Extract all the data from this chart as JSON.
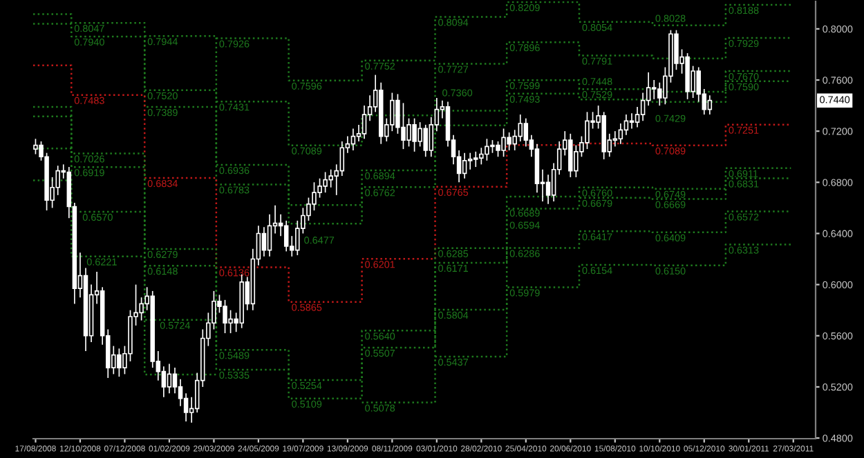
{
  "chart_data": {
    "type": "candlestick",
    "color": "#ffffff",
    "x": [
      "2008-08-17",
      "2008-08-24",
      "2008-08-31",
      "2008-09-07",
      "2008-09-14",
      "2008-09-21",
      "2008-09-28",
      "2008-10-05",
      "2008-10-12",
      "2008-10-19",
      "2008-10-26",
      "2008-11-02",
      "2008-11-09",
      "2008-11-16",
      "2008-11-23",
      "2008-11-30",
      "2008-12-07",
      "2008-12-14",
      "2008-12-21",
      "2008-12-28",
      "2009-01-04",
      "2009-01-11",
      "2009-01-18",
      "2009-01-25",
      "2009-02-01",
      "2009-02-08",
      "2009-02-15",
      "2009-02-22",
      "2009-03-01",
      "2009-03-08",
      "2009-03-15",
      "2009-03-22",
      "2009-03-29",
      "2009-04-05",
      "2009-04-12",
      "2009-04-19",
      "2009-04-26",
      "2009-05-03",
      "2009-05-10",
      "2009-05-17",
      "2009-05-24",
      "2009-05-31",
      "2009-06-07",
      "2009-06-14",
      "2009-06-21",
      "2009-06-28",
      "2009-07-05",
      "2009-07-12",
      "2009-07-19",
      "2009-07-26",
      "2009-08-02",
      "2009-08-09",
      "2009-08-16",
      "2009-08-23",
      "2009-08-30",
      "2009-09-06",
      "2009-09-13",
      "2009-09-20",
      "2009-09-27",
      "2009-10-04",
      "2009-10-11",
      "2009-10-18",
      "2009-10-25",
      "2009-11-01",
      "2009-11-08",
      "2009-11-15",
      "2009-11-22",
      "2009-11-29",
      "2009-12-06",
      "2009-12-13",
      "2009-12-20",
      "2009-12-27",
      "2010-01-03",
      "2010-01-10",
      "2010-01-17",
      "2010-01-24",
      "2010-01-31",
      "2010-02-07",
      "2010-02-14",
      "2010-02-21",
      "2010-02-28",
      "2010-03-07",
      "2010-03-14",
      "2010-03-21",
      "2010-03-28",
      "2010-04-04",
      "2010-04-11",
      "2010-04-18",
      "2010-04-25",
      "2010-05-02",
      "2010-05-09",
      "2010-05-16",
      "2010-05-23",
      "2010-05-30",
      "2010-06-06",
      "2010-06-13",
      "2010-06-20",
      "2010-06-27",
      "2010-07-04",
      "2010-07-11",
      "2010-07-18",
      "2010-07-25",
      "2010-08-01",
      "2010-08-08",
      "2010-08-15",
      "2010-08-22",
      "2010-08-29",
      "2010-09-05",
      "2010-09-12",
      "2010-09-19",
      "2010-09-26",
      "2010-10-03",
      "2010-10-10",
      "2010-10-17",
      "2010-10-24",
      "2010-10-31",
      "2010-11-07",
      "2010-11-14",
      "2010-11-21",
      "2010-11-28",
      "2010-12-05",
      "2010-12-12"
    ],
    "ohlc": [
      [
        0.706,
        0.714,
        0.702,
        0.709
      ],
      [
        0.709,
        0.712,
        0.697,
        0.7
      ],
      [
        0.7,
        0.703,
        0.658,
        0.666
      ],
      [
        0.666,
        0.684,
        0.66,
        0.676
      ],
      [
        0.676,
        0.693,
        0.67,
        0.689
      ],
      [
        0.689,
        0.694,
        0.683,
        0.688
      ],
      [
        0.688,
        0.692,
        0.652,
        0.661
      ],
      [
        0.661,
        0.664,
        0.585,
        0.597
      ],
      [
        0.597,
        0.625,
        0.59,
        0.607
      ],
      [
        0.607,
        0.613,
        0.548,
        0.56
      ],
      [
        0.56,
        0.6,
        0.555,
        0.592
      ],
      [
        0.592,
        0.61,
        0.585,
        0.595
      ],
      [
        0.595,
        0.598,
        0.553,
        0.56
      ],
      [
        0.56,
        0.565,
        0.527,
        0.535
      ],
      [
        0.535,
        0.552,
        0.53,
        0.545
      ],
      [
        0.545,
        0.55,
        0.528,
        0.535
      ],
      [
        0.535,
        0.552,
        0.53,
        0.546
      ],
      [
        0.546,
        0.58,
        0.54,
        0.575
      ],
      [
        0.575,
        0.6,
        0.568,
        0.578
      ],
      [
        0.578,
        0.59,
        0.572,
        0.585
      ],
      [
        0.585,
        0.598,
        0.58,
        0.591
      ],
      [
        0.591,
        0.595,
        0.535,
        0.54
      ],
      [
        0.54,
        0.548,
        0.525,
        0.532
      ],
      [
        0.532,
        0.536,
        0.512,
        0.52
      ],
      [
        0.52,
        0.538,
        0.515,
        0.53
      ],
      [
        0.53,
        0.535,
        0.515,
        0.52
      ],
      [
        0.52,
        0.526,
        0.505,
        0.511
      ],
      [
        0.511,
        0.515,
        0.493,
        0.5
      ],
      [
        0.5,
        0.512,
        0.492,
        0.503
      ],
      [
        0.503,
        0.531,
        0.5,
        0.525
      ],
      [
        0.525,
        0.565,
        0.52,
        0.558
      ],
      [
        0.558,
        0.578,
        0.552,
        0.57
      ],
      [
        0.57,
        0.595,
        0.565,
        0.587
      ],
      [
        0.587,
        0.592,
        0.578,
        0.583
      ],
      [
        0.583,
        0.588,
        0.562,
        0.57
      ],
      [
        0.57,
        0.58,
        0.562,
        0.573
      ],
      [
        0.573,
        0.578,
        0.563,
        0.57
      ],
      [
        0.57,
        0.608,
        0.566,
        0.602
      ],
      [
        0.602,
        0.606,
        0.58,
        0.585
      ],
      [
        0.585,
        0.628,
        0.58,
        0.62
      ],
      [
        0.62,
        0.646,
        0.615,
        0.64
      ],
      [
        0.64,
        0.645,
        0.622,
        0.627
      ],
      [
        0.627,
        0.655,
        0.622,
        0.646
      ],
      [
        0.646,
        0.662,
        0.64,
        0.648
      ],
      [
        0.648,
        0.655,
        0.638,
        0.646
      ],
      [
        0.646,
        0.65,
        0.626,
        0.63
      ],
      [
        0.63,
        0.638,
        0.622,
        0.627
      ],
      [
        0.627,
        0.65,
        0.623,
        0.644
      ],
      [
        0.644,
        0.66,
        0.64,
        0.654
      ],
      [
        0.654,
        0.668,
        0.65,
        0.663
      ],
      [
        0.663,
        0.68,
        0.658,
        0.672
      ],
      [
        0.672,
        0.683,
        0.668,
        0.677
      ],
      [
        0.677,
        0.688,
        0.672,
        0.682
      ],
      [
        0.682,
        0.69,
        0.676,
        0.685
      ],
      [
        0.685,
        0.694,
        0.67,
        0.689
      ],
      [
        0.689,
        0.712,
        0.685,
        0.707
      ],
      [
        0.707,
        0.716,
        0.703,
        0.71
      ],
      [
        0.71,
        0.722,
        0.705,
        0.716
      ],
      [
        0.716,
        0.725,
        0.712,
        0.718
      ],
      [
        0.718,
        0.74,
        0.714,
        0.733
      ],
      [
        0.733,
        0.748,
        0.728,
        0.739
      ],
      [
        0.739,
        0.764,
        0.735,
        0.752
      ],
      [
        0.752,
        0.758,
        0.71,
        0.716
      ],
      [
        0.716,
        0.73,
        0.712,
        0.725
      ],
      [
        0.725,
        0.75,
        0.72,
        0.744
      ],
      [
        0.744,
        0.749,
        0.718,
        0.723
      ],
      [
        0.723,
        0.742,
        0.706,
        0.713
      ],
      [
        0.713,
        0.73,
        0.708,
        0.725
      ],
      [
        0.725,
        0.73,
        0.704,
        0.712
      ],
      [
        0.712,
        0.727,
        0.708,
        0.722
      ],
      [
        0.722,
        0.725,
        0.7,
        0.705
      ],
      [
        0.705,
        0.731,
        0.7,
        0.725
      ],
      [
        0.725,
        0.746,
        0.72,
        0.737
      ],
      [
        0.737,
        0.744,
        0.73,
        0.739
      ],
      [
        0.739,
        0.743,
        0.708,
        0.713
      ],
      [
        0.713,
        0.717,
        0.694,
        0.7
      ],
      [
        0.7,
        0.705,
        0.68,
        0.687
      ],
      [
        0.687,
        0.703,
        0.683,
        0.697
      ],
      [
        0.697,
        0.703,
        0.69,
        0.698
      ],
      [
        0.698,
        0.704,
        0.692,
        0.699
      ],
      [
        0.699,
        0.707,
        0.694,
        0.702
      ],
      [
        0.702,
        0.714,
        0.697,
        0.708
      ],
      [
        0.708,
        0.713,
        0.703,
        0.709
      ],
      [
        0.709,
        0.712,
        0.7,
        0.705
      ],
      [
        0.705,
        0.722,
        0.7,
        0.715
      ],
      [
        0.715,
        0.719,
        0.705,
        0.71
      ],
      [
        0.71,
        0.721,
        0.705,
        0.716
      ],
      [
        0.716,
        0.733,
        0.712,
        0.726
      ],
      [
        0.726,
        0.73,
        0.708,
        0.713
      ],
      [
        0.713,
        0.717,
        0.7,
        0.706
      ],
      [
        0.706,
        0.71,
        0.672,
        0.679
      ],
      [
        0.679,
        0.69,
        0.665,
        0.68
      ],
      [
        0.68,
        0.686,
        0.663,
        0.67
      ],
      [
        0.67,
        0.695,
        0.665,
        0.69
      ],
      [
        0.69,
        0.712,
        0.686,
        0.706
      ],
      [
        0.706,
        0.72,
        0.701,
        0.713
      ],
      [
        0.713,
        0.718,
        0.684,
        0.689
      ],
      [
        0.689,
        0.709,
        0.684,
        0.704
      ],
      [
        0.704,
        0.716,
        0.7,
        0.711
      ],
      [
        0.711,
        0.735,
        0.706,
        0.728
      ],
      [
        0.728,
        0.735,
        0.722,
        0.727
      ],
      [
        0.727,
        0.74,
        0.722,
        0.732
      ],
      [
        0.732,
        0.735,
        0.698,
        0.704
      ],
      [
        0.704,
        0.718,
        0.7,
        0.713
      ],
      [
        0.713,
        0.72,
        0.708,
        0.714
      ],
      [
        0.714,
        0.726,
        0.71,
        0.721
      ],
      [
        0.721,
        0.733,
        0.717,
        0.728
      ],
      [
        0.728,
        0.734,
        0.722,
        0.727
      ],
      [
        0.727,
        0.739,
        0.723,
        0.733
      ],
      [
        0.733,
        0.75,
        0.728,
        0.744
      ],
      [
        0.744,
        0.766,
        0.74,
        0.754
      ],
      [
        0.754,
        0.76,
        0.745,
        0.753
      ],
      [
        0.753,
        0.758,
        0.74,
        0.746
      ],
      [
        0.746,
        0.77,
        0.741,
        0.763
      ],
      [
        0.763,
        0.799,
        0.758,
        0.796
      ],
      [
        0.796,
        0.799,
        0.768,
        0.773
      ],
      [
        0.773,
        0.784,
        0.765,
        0.778
      ],
      [
        0.778,
        0.781,
        0.745,
        0.751
      ],
      [
        0.751,
        0.771,
        0.746,
        0.767
      ],
      [
        0.767,
        0.77,
        0.743,
        0.749
      ],
      [
        0.749,
        0.753,
        0.733,
        0.737
      ],
      [
        0.737,
        0.748,
        0.733,
        0.744
      ]
    ],
    "series": [
      {
        "type": "step",
        "color": "#1e7a1e",
        "line_style": "dotted",
        "x": [
          "2009-04-01",
          "2009-07-01",
          "2009-10-01",
          "2010-01-01",
          "2010-04-01",
          "2010-07-01",
          "2010-10-01",
          "2011-01-01",
          "2011-03-24"
        ],
        "values": [
          0.7926,
          0.7596,
          0.7752,
          0.8094,
          0.8209,
          0.8054,
          0.8028,
          0.8188,
          0.8188
        ],
        "value_labels": [
          "0.7926",
          "0.7596",
          "0.7752",
          "0.8094",
          "0.8209",
          "0.8054",
          "0.8028",
          "0.8188",
          null
        ]
      },
      {
        "type": "step",
        "color": "#1e7a1e",
        "line_style": "dotted",
        "x": [
          "2009-01-01",
          "2009-04-01",
          "2009-07-01",
          "2009-10-01",
          "2010-01-01",
          "2010-04-01",
          "2010-07-01",
          "2010-10-01",
          "2011-01-01",
          "2011-03-24"
        ],
        "values": [
          0.7944,
          0.7431,
          0.7089,
          0.7324,
          0.7727,
          0.7896,
          0.7791,
          0.7769,
          0.7929,
          0.7929
        ],
        "value_labels": [
          "0.7944",
          "0.7431",
          "0.7089",
          null,
          "0.7727",
          "0.7896",
          "0.7791",
          null,
          "0.7929",
          null
        ]
      },
      {
        "type": "step",
        "color": "#1e7a1e",
        "line_style": "dotted",
        "x": [
          "2008-08-14",
          "2008-10-01",
          "2009-01-01",
          "2009-04-01",
          "2009-07-01",
          "2009-10-01",
          "2010-01-01",
          "2010-04-01",
          "2010-07-01",
          "2010-10-01",
          "2011-01-01",
          "2011-03-24"
        ],
        "values": [
          0.8115,
          0.8047,
          0.752,
          0.6936,
          0.6622,
          0.6894,
          0.736,
          0.7599,
          0.7529,
          0.7509,
          0.767,
          0.767
        ],
        "value_labels": [
          null,
          "0.8047",
          "0.7520",
          "0.6936",
          null,
          "0.6894",
          "0.7360",
          "0.7599",
          "0.7529",
          null,
          "0.7670",
          null
        ]
      },
      {
        "type": "step",
        "color": "#1e7a1e",
        "line_style": "dotted",
        "x": [
          "2008-08-14",
          "2008-10-01",
          "2009-01-01",
          "2009-04-01",
          "2009-07-01",
          "2009-10-01",
          "2010-01-01",
          "2010-04-01",
          "2010-07-01",
          "2010-10-01",
          "2011-01-01",
          "2011-03-24"
        ],
        "values": [
          0.804,
          0.794,
          0.7389,
          0.6783,
          0.6477,
          0.6762,
          0.7246,
          0.7493,
          0.7448,
          0.7429,
          0.759,
          0.759
        ],
        "value_labels": [
          null,
          "0.7940",
          "0.7389",
          "0.6783",
          "0.6477",
          "0.6762",
          null,
          "0.7493",
          "0.7448",
          "0.7429",
          "0.7590",
          null
        ]
      },
      {
        "type": "step",
        "color": "#c01818",
        "line_style": "dotted",
        "x": [
          "2008-08-14",
          "2008-10-01",
          "2009-01-01",
          "2009-04-01",
          "2009-07-01",
          "2009-10-01",
          "2010-01-01",
          "2010-04-01",
          "2010-07-01",
          "2010-10-01",
          "2011-01-01",
          "2011-03-24"
        ],
        "values": [
          0.7715,
          0.7483,
          0.6834,
          0.6136,
          0.5865,
          0.6201,
          0.6765,
          0.7092,
          0.7104,
          0.7089,
          0.7251,
          0.7251
        ],
        "value_labels": [
          null,
          "0.7483",
          "0.6834",
          "0.6136",
          "0.5865",
          "0.6201",
          "0.6765",
          null,
          null,
          "0.7089",
          "0.7251",
          null
        ]
      },
      {
        "type": "step",
        "color": "#1e7a1e",
        "line_style": "dotted",
        "x": [
          "2008-08-14",
          "2008-10-01",
          "2009-01-01",
          "2009-04-01",
          "2009-07-01",
          "2009-10-01",
          "2010-01-01",
          "2010-04-01",
          "2010-07-01",
          "2010-10-01",
          "2011-01-01",
          "2011-03-24"
        ],
        "values": [
          0.739,
          0.7026,
          0.6279,
          0.5489,
          0.5254,
          0.564,
          0.6285,
          0.6689,
          0.676,
          0.6749,
          0.6911,
          0.6911
        ],
        "value_labels": [
          null,
          "0.7026",
          "0.6279",
          "0.5489",
          "0.5254",
          "0.5640",
          "0.6285",
          "0.6689",
          "0.6760",
          "0.6749",
          "0.6911",
          null
        ]
      },
      {
        "type": "step",
        "color": "#1e7a1e",
        "line_style": "dotted",
        "x": [
          "2008-08-14",
          "2008-10-01",
          "2009-01-01",
          "2009-04-01",
          "2009-07-01",
          "2009-10-01",
          "2010-01-01",
          "2010-04-01",
          "2010-07-01",
          "2010-10-01",
          "2011-01-01",
          "2011-03-24"
        ],
        "values": [
          0.7315,
          0.6919,
          0.6148,
          0.5335,
          0.5109,
          0.5507,
          0.6171,
          0.6594,
          0.6679,
          0.6669,
          0.6831,
          0.6831
        ],
        "value_labels": [
          null,
          "0.6919",
          "0.6148",
          "0.5335",
          "0.5109",
          "0.5507",
          "0.6171",
          "0.6594",
          "0.6679",
          "0.6669",
          "0.6831",
          null
        ]
      },
      {
        "type": "step",
        "color": "#1e7a1e",
        "line_style": "dotted",
        "x": [
          "2008-08-14",
          "2008-10-01",
          "2009-01-01",
          "2009-04-01",
          "2009-07-01",
          "2009-10-01",
          "2010-01-01",
          "2010-04-01",
          "2010-07-01",
          "2010-10-01",
          "2011-01-01",
          "2011-03-24"
        ],
        "values": [
          0.7065,
          0.657,
          0.5724,
          null,
          null,
          0.5078,
          0.5804,
          0.6286,
          0.6417,
          0.6409,
          0.6572,
          0.6572
        ],
        "value_labels": [
          null,
          "0.6570",
          "0.5724",
          null,
          null,
          "0.5078",
          "0.5804",
          "0.6286",
          "0.6417",
          "0.6409",
          "0.6572",
          null
        ]
      },
      {
        "type": "step",
        "color": "#1e7a1e",
        "line_style": "dotted",
        "x": [
          "2008-08-14",
          "2008-10-01",
          "2009-01-01",
          "2009-04-01",
          "2009-07-01",
          "2009-10-01",
          "2010-01-01",
          "2010-04-01",
          "2010-07-01",
          "2010-10-01",
          "2011-01-01",
          "2011-03-24"
        ],
        "values": [
          0.6815,
          0.6221,
          0.5297,
          null,
          null,
          null,
          0.5437,
          0.5979,
          0.6154,
          0.615,
          0.6313,
          0.6313
        ],
        "value_labels": [
          null,
          "0.6221",
          null,
          null,
          null,
          null,
          "0.5437",
          "0.5979",
          "0.6154",
          "0.6150",
          "0.6313",
          null
        ]
      }
    ],
    "xlim": [
      "2008-08-14",
      "2011-04-24"
    ],
    "xticks": [
      {
        "value": "2008-08-17",
        "label": "17/08/2008"
      },
      {
        "value": "2008-10-12",
        "label": "12/10/2008"
      },
      {
        "value": "2008-12-07",
        "label": "07/12/2008"
      },
      {
        "value": "2009-02-01",
        "label": "01/02/2009"
      },
      {
        "value": "2009-03-29",
        "label": "29/03/2009"
      },
      {
        "value": "2009-05-24",
        "label": "24/05/2009"
      },
      {
        "value": "2009-07-19",
        "label": "19/07/2009"
      },
      {
        "value": "2009-09-13",
        "label": "13/09/2009"
      },
      {
        "value": "2009-11-08",
        "label": "08/11/2009"
      },
      {
        "value": "2010-01-03",
        "label": "03/01/2010"
      },
      {
        "value": "2010-02-28",
        "label": "28/02/2010"
      },
      {
        "value": "2010-04-25",
        "label": "25/04/2010"
      },
      {
        "value": "2010-06-20",
        "label": "20/06/2010"
      },
      {
        "value": "2010-08-15",
        "label": "15/08/2010"
      },
      {
        "value": "2010-10-10",
        "label": "10/10/2010"
      },
      {
        "value": "2010-12-05",
        "label": "05/12/2010"
      },
      {
        "value": "2011-01-30",
        "label": "30/01/2011"
      },
      {
        "value": "2011-03-27",
        "label": "27/03/2011"
      }
    ],
    "ylim": [
      0.4795,
      0.8215
    ],
    "yticks": [
      {
        "value": 0.48,
        "label": "0.4800"
      },
      {
        "value": 0.52,
        "label": "0.5200"
      },
      {
        "value": 0.56,
        "label": "0.5600"
      },
      {
        "value": 0.6,
        "label": "0.6000"
      },
      {
        "value": 0.64,
        "label": "0.6400"
      },
      {
        "value": 0.68,
        "label": "0.6800"
      },
      {
        "value": 0.72,
        "label": "0.7200"
      },
      {
        "value": 0.76,
        "label": "0.7600"
      },
      {
        "value": 0.8,
        "label": "0.8000"
      }
    ],
    "annotations": [
      "0.7440"
    ]
  }
}
